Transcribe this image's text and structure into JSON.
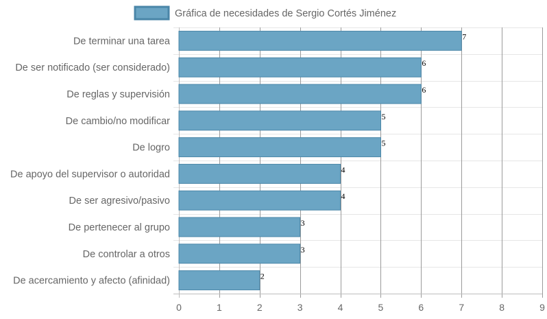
{
  "chart_data": {
    "type": "bar",
    "orientation": "horizontal",
    "title": "",
    "xlabel": "",
    "ylabel": "",
    "categories": [
      "De terminar una tarea",
      "De ser notificado (ser considerado)",
      "De reglas y supervisión",
      "De cambio/no modificar",
      "De logro",
      "De apoyo del supervisor o autoridad",
      "De ser agresivo/pasivo",
      "De pertenecer al grupo",
      "De controlar a otros",
      "De acercamiento y afecto (afinidad)"
    ],
    "series": [
      {
        "name": "Gráfica de necesidades de Sergio Cortés Jiménez",
        "values": [
          7,
          6,
          6,
          5,
          5,
          4,
          4,
          3,
          3,
          2
        ],
        "color": "#6ba5c4",
        "border_color": "#4a86a8"
      }
    ],
    "xlim": [
      0,
      9
    ],
    "x_ticks": [
      0,
      1,
      2,
      3,
      4,
      5,
      6,
      7,
      8,
      9
    ],
    "grid": true,
    "legend": "top-center",
    "data_labels": true
  }
}
